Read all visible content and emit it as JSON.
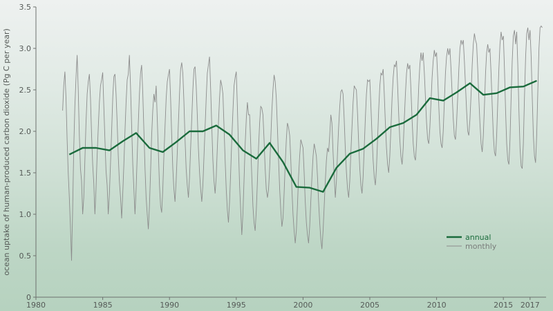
{
  "chart_data": {
    "type": "line",
    "ylabel": "ocean uptake of human-produced carbon dioxide (Pg C per year)",
    "xlabel": "",
    "xlim": [
      1980,
      2018.2
    ],
    "ylim": [
      0,
      3.5
    ],
    "x_ticks": [
      1980,
      1985,
      1990,
      1995,
      2000,
      2005,
      2010,
      2015,
      2017
    ],
    "y_ticks": [
      "0",
      "0.5",
      "1.0",
      "1.5",
      "2.0",
      "2.5",
      "3.0",
      "3.5"
    ],
    "grid": false,
    "legend_position": "right",
    "colors": {
      "annual": "#1a6b3c",
      "monthly": "#8c8c8c"
    },
    "series": [
      {
        "name": "annual",
        "x": [
          1982.5,
          1983.5,
          1984.5,
          1985.5,
          1986.5,
          1987.5,
          1988.5,
          1989.5,
          1990.5,
          1991.5,
          1992.5,
          1993.5,
          1994.5,
          1995.5,
          1996.5,
          1997.5,
          1998.5,
          1999.5,
          2000.5,
          2001.5,
          2002.5,
          2003.5,
          2004.5,
          2005.5,
          2006.5,
          2007.5,
          2008.5,
          2009.5,
          2010.5,
          2011.5,
          2012.5,
          2013.5,
          2014.5,
          2015.5,
          2016.5,
          2017.5
        ],
        "values": [
          1.72,
          1.8,
          1.8,
          1.77,
          1.88,
          1.98,
          1.8,
          1.75,
          1.87,
          2.0,
          2.0,
          2.07,
          1.96,
          1.77,
          1.67,
          1.86,
          1.63,
          1.33,
          1.32,
          1.27,
          1.56,
          1.73,
          1.79,
          1.91,
          2.05,
          2.1,
          2.2,
          2.4,
          2.37,
          2.47,
          2.58,
          2.44,
          2.46,
          2.53,
          2.54,
          2.61
        ]
      },
      {
        "name": "monthly",
        "x_start": 1982.0,
        "x_step": 0.08333,
        "values": [
          2.25,
          2.55,
          2.72,
          2.4,
          1.9,
          1.5,
          1.2,
          0.85,
          0.44,
          1.05,
          1.8,
          2.3,
          2.65,
          2.92,
          2.5,
          1.95,
          1.55,
          1.4,
          1.0,
          1.2,
          1.65,
          2.1,
          2.45,
          2.6,
          2.69,
          2.4,
          1.95,
          1.6,
          1.37,
          1.0,
          1.3,
          1.7,
          2.05,
          2.35,
          2.55,
          2.62,
          2.71,
          2.3,
          1.9,
          1.52,
          1.35,
          1.0,
          1.25,
          1.62,
          2.0,
          2.4,
          2.66,
          2.69,
          2.45,
          2.1,
          1.7,
          1.4,
          1.2,
          0.95,
          1.25,
          1.6,
          2.0,
          2.35,
          2.62,
          2.69,
          2.92,
          2.55,
          2.05,
          1.6,
          1.3,
          1.0,
          1.3,
          1.7,
          2.1,
          2.45,
          2.7,
          2.8,
          2.45,
          2.0,
          1.55,
          1.2,
          1.0,
          0.82,
          1.1,
          1.5,
          1.95,
          2.25,
          2.45,
          2.35,
          2.55,
          2.15,
          1.75,
          1.35,
          1.1,
          1.02,
          1.3,
          1.7,
          2.05,
          2.4,
          2.6,
          2.68,
          2.75,
          2.4,
          1.95,
          1.55,
          1.3,
          1.15,
          1.4,
          1.75,
          2.1,
          2.45,
          2.75,
          2.83,
          2.7,
          2.35,
          1.9,
          1.55,
          1.35,
          1.2,
          1.45,
          1.8,
          2.15,
          2.5,
          2.75,
          2.78,
          2.55,
          2.2,
          1.8,
          1.5,
          1.3,
          1.15,
          1.35,
          1.7,
          2.05,
          2.4,
          2.7,
          2.8,
          2.9,
          2.5,
          2.05,
          1.65,
          1.4,
          1.25,
          1.45,
          1.8,
          2.1,
          2.4,
          2.62,
          2.55,
          2.45,
          2.05,
          1.65,
          1.3,
          1.05,
          0.9,
          1.15,
          1.5,
          1.9,
          2.25,
          2.55,
          2.65,
          2.72,
          2.3,
          1.8,
          1.35,
          1.05,
          0.75,
          1.0,
          1.4,
          1.85,
          2.15,
          2.35,
          2.2,
          2.2,
          1.85,
          1.45,
          1.1,
          0.9,
          0.8,
          1.05,
          1.4,
          1.8,
          2.1,
          2.3,
          2.28,
          2.2,
          1.9,
          1.55,
          1.3,
          1.2,
          1.3,
          1.55,
          1.9,
          2.25,
          2.5,
          2.68,
          2.6,
          2.4,
          2.05,
          1.65,
          1.3,
          1.05,
          0.85,
          0.95,
          1.25,
          1.6,
          1.9,
          2.1,
          2.05,
          1.95,
          1.65,
          1.3,
          1.0,
          0.8,
          0.65,
          0.8,
          1.1,
          1.45,
          1.7,
          1.9,
          1.85,
          1.8,
          1.5,
          1.15,
          0.9,
          0.75,
          0.65,
          0.85,
          1.15,
          1.45,
          1.7,
          1.85,
          1.78,
          1.7,
          1.45,
          1.15,
          0.9,
          0.7,
          0.58,
          0.8,
          1.1,
          1.4,
          1.65,
          1.8,
          1.75,
          1.95,
          2.2,
          2.1,
          1.75,
          1.45,
          1.2,
          1.4,
          1.75,
          2.05,
          2.3,
          2.48,
          2.5,
          2.45,
          2.15,
          1.8,
          1.5,
          1.3,
          1.2,
          1.4,
          1.75,
          2.05,
          2.35,
          2.55,
          2.52,
          2.5,
          2.2,
          1.85,
          1.55,
          1.35,
          1.25,
          1.45,
          1.8,
          2.15,
          2.45,
          2.62,
          2.6,
          2.62,
          2.3,
          1.95,
          1.65,
          1.45,
          1.35,
          1.55,
          1.9,
          2.25,
          2.55,
          2.7,
          2.68,
          2.75,
          2.45,
          2.1,
          1.8,
          1.6,
          1.5,
          1.7,
          2.05,
          2.4,
          2.65,
          2.8,
          2.78,
          2.85,
          2.55,
          2.2,
          1.9,
          1.7,
          1.6,
          1.8,
          2.15,
          2.45,
          2.7,
          2.82,
          2.75,
          2.8,
          2.5,
          2.15,
          1.85,
          1.7,
          1.65,
          1.85,
          2.2,
          2.55,
          2.8,
          2.95,
          2.85,
          2.95,
          2.7,
          2.4,
          2.1,
          1.9,
          1.85,
          2.05,
          2.35,
          2.65,
          2.85,
          2.98,
          2.9,
          2.95,
          2.65,
          2.3,
          2.0,
          1.85,
          1.8,
          2.0,
          2.35,
          2.7,
          2.9,
          3.0,
          2.92,
          3.0,
          2.75,
          2.45,
          2.15,
          1.95,
          1.9,
          2.1,
          2.4,
          2.75,
          3.0,
          3.1,
          3.05,
          3.1,
          2.85,
          2.55,
          2.25,
          2.0,
          1.95,
          2.15,
          2.45,
          2.8,
          3.05,
          3.18,
          3.1,
          3.05,
          2.75,
          2.4,
          2.1,
          1.85,
          1.75,
          1.95,
          2.3,
          2.7,
          2.95,
          3.05,
          2.95,
          3.0,
          2.7,
          2.3,
          1.95,
          1.75,
          1.7,
          1.95,
          2.35,
          2.75,
          3.05,
          3.2,
          3.1,
          3.15,
          2.75,
          2.25,
          1.85,
          1.65,
          1.6,
          1.9,
          2.4,
          2.85,
          3.15,
          3.22,
          3.05,
          3.2,
          2.8,
          2.25,
          1.8,
          1.58,
          1.55,
          1.85,
          2.4,
          2.9,
          3.18,
          3.25,
          3.1,
          3.22,
          2.9,
          2.4,
          1.95,
          1.7,
          1.62,
          1.95,
          2.5,
          3.0,
          3.25,
          3.27,
          3.25
        ]
      }
    ]
  }
}
